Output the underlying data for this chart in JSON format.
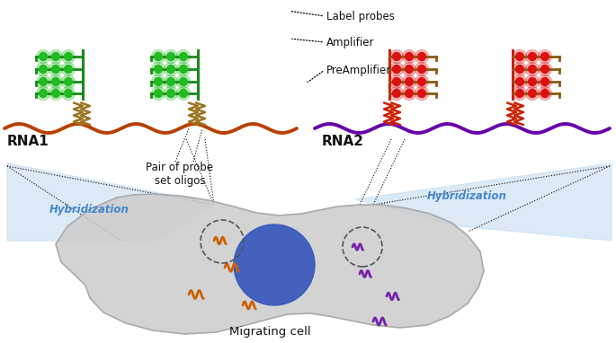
{
  "bg": "#ffffff",
  "rna1_color": "#b84000",
  "rna2_color": "#6600aa",
  "probe_color_gold": "#9b7320",
  "probe_color_red": "#cc2000",
  "green_branch": "#1a8a1a",
  "green_dot": "#22bb22",
  "red_branch_color": "#cc2000",
  "brown_branch": "#8B5a10",
  "red_dot": "#dd1111",
  "cell_fill": "#cccccc",
  "cell_edge": "#aaaaaa",
  "nucleus_fill": "#3355bb",
  "hybridization_fill": "#c5ddf0",
  "hybridization_text_color": "#4488cc",
  "annotation_color": "#111111",
  "rna1_label": "RNA1",
  "rna2_label": "RNA2",
  "label_probes": "Label probes",
  "amplifier": "Amplifier",
  "preamplifier": "PreAmplifier",
  "probe_set": "Pair of probe\nset oligos",
  "hybridization": "Hybridization",
  "migrating_cell": "Migrating cell",
  "orange_color": "#cc6000",
  "purple_color": "#7722aa"
}
